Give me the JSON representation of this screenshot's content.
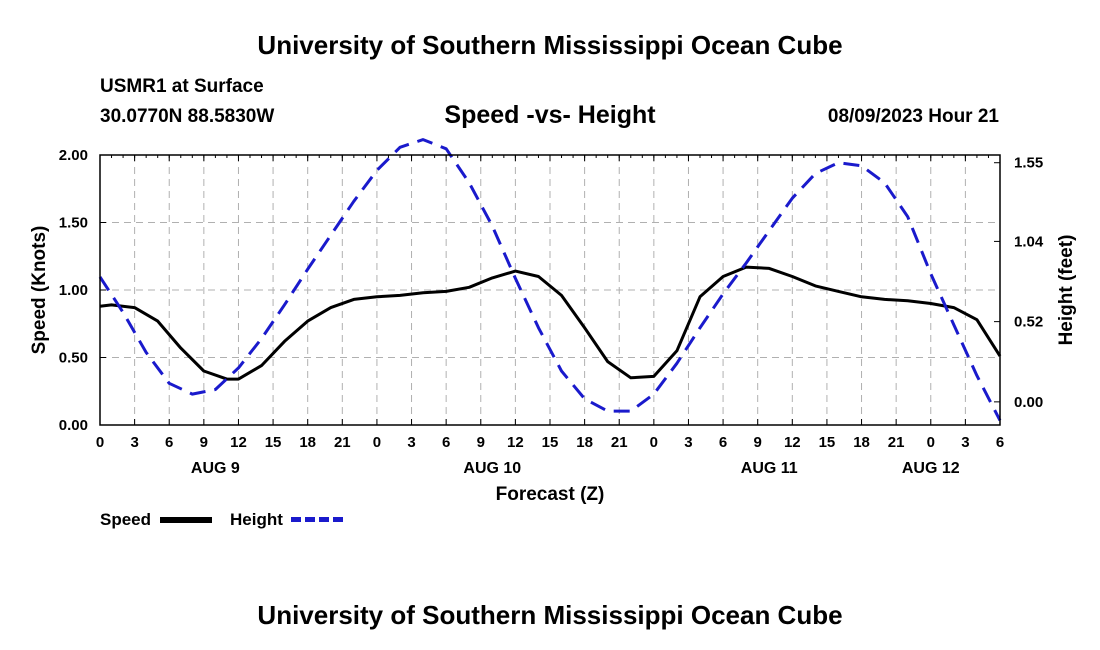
{
  "header": {
    "title": "University of Southern Mississippi Ocean Cube",
    "station": "USMR1 at Surface",
    "coords": "30.0770N  88.5830W",
    "chart_title": "Speed -vs- Height",
    "timestamp": "08/09/2023 Hour 21"
  },
  "footer": {
    "title": "University of Southern Mississippi Ocean Cube"
  },
  "legend": {
    "speed_label": "Speed",
    "height_label": "Height"
  },
  "colors": {
    "speed": "#000000",
    "height": "#1a1acc",
    "grid": "#b0b0b0"
  },
  "chart_data": {
    "type": "line",
    "title": "Speed -vs- Height",
    "xlabel": "Forecast (Z)",
    "ylabel": "Speed (Knots)",
    "y2label": "Height (feet)",
    "x_ticks": [
      "0",
      "3",
      "6",
      "9",
      "12",
      "15",
      "18",
      "21",
      "0",
      "3",
      "6",
      "9",
      "12",
      "15",
      "18",
      "21",
      "0",
      "3",
      "6",
      "9",
      "12",
      "15",
      "18",
      "21",
      "0",
      "3",
      "6"
    ],
    "date_labels": [
      {
        "label": "AUG 9",
        "hour": 10
      },
      {
        "label": "AUG 10",
        "hour": 34
      },
      {
        "label": "AUG 11",
        "hour": 58
      },
      {
        "label": "AUG 12",
        "hour": 72
      }
    ],
    "xlim": [
      0,
      78
    ],
    "ylim": [
      0,
      2.0
    ],
    "y_ticks": [
      "0.00",
      "0.50",
      "1.00",
      "1.50",
      "2.00"
    ],
    "y2lim": [
      -0.15,
      1.6
    ],
    "y2_ticks": [
      {
        "label": "1.55",
        "value": 1.55
      },
      {
        "label": "1.04",
        "value": 1.04
      },
      {
        "label": "0.52",
        "value": 0.52
      },
      {
        "label": "0.00",
        "value": 0.0
      }
    ],
    "series": [
      {
        "name": "Speed",
        "axis": "left",
        "x": [
          0,
          1,
          3,
          5,
          7,
          9,
          11,
          12,
          14,
          16,
          18,
          20,
          22,
          24,
          26,
          28,
          30,
          32,
          34,
          36,
          38,
          40,
          42,
          44,
          46,
          48,
          50,
          52,
          54,
          56,
          58,
          60,
          62,
          64,
          66,
          68,
          70,
          72,
          74,
          76,
          78
        ],
        "values": [
          0.88,
          0.89,
          0.87,
          0.77,
          0.57,
          0.4,
          0.34,
          0.34,
          0.44,
          0.62,
          0.77,
          0.87,
          0.93,
          0.95,
          0.96,
          0.98,
          0.99,
          1.02,
          1.09,
          1.14,
          1.1,
          0.96,
          0.72,
          0.47,
          0.35,
          0.36,
          0.55,
          0.95,
          1.1,
          1.17,
          1.16,
          1.1,
          1.03,
          0.99,
          0.95,
          0.93,
          0.92,
          0.9,
          0.87,
          0.78,
          0.51
        ]
      },
      {
        "name": "Height",
        "axis": "right",
        "x": [
          0,
          2,
          4,
          6,
          8,
          10,
          12,
          14,
          16,
          18,
          20,
          22,
          24,
          26,
          28,
          30,
          32,
          34,
          36,
          38,
          40,
          42,
          44,
          46,
          48,
          50,
          52,
          54,
          56,
          58,
          60,
          62,
          64,
          66,
          68,
          70,
          72,
          74,
          76,
          78
        ],
        "values": [
          0.81,
          0.58,
          0.32,
          0.12,
          0.05,
          0.08,
          0.22,
          0.41,
          0.63,
          0.86,
          1.08,
          1.3,
          1.5,
          1.65,
          1.7,
          1.64,
          1.42,
          1.14,
          0.8,
          0.48,
          0.2,
          0.02,
          -0.06,
          -0.06,
          0.05,
          0.25,
          0.48,
          0.7,
          0.9,
          1.11,
          1.32,
          1.48,
          1.55,
          1.53,
          1.42,
          1.2,
          0.83,
          0.5,
          0.17,
          -0.12
        ]
      }
    ]
  }
}
